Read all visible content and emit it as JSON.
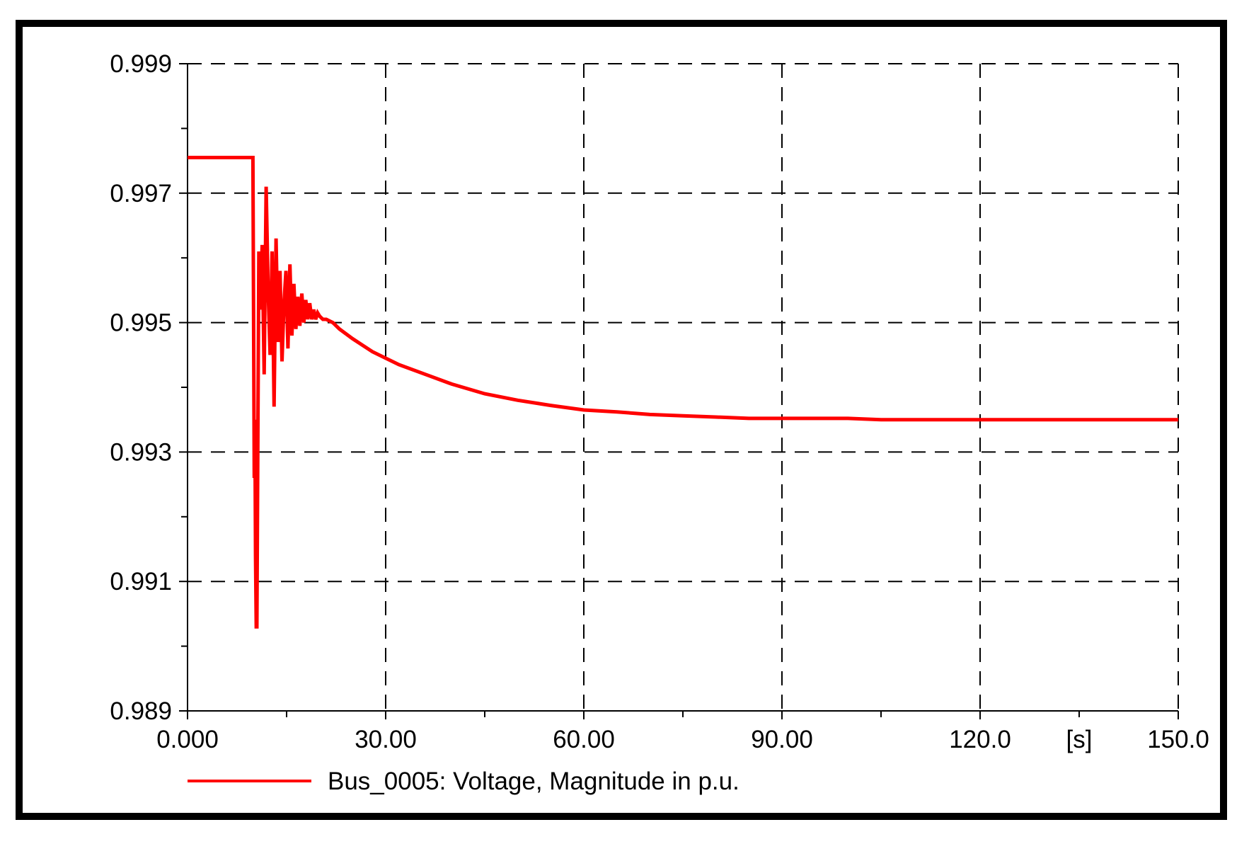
{
  "chart_data": {
    "type": "line",
    "xlabel": "",
    "ylabel": "",
    "x_unit_label": "[s]",
    "xlim": [
      0,
      150
    ],
    "ylim": [
      0.989,
      0.999
    ],
    "x_ticks": [
      {
        "value": 0,
        "label": "0.000"
      },
      {
        "value": 30,
        "label": "30.00"
      },
      {
        "value": 60,
        "label": "60.00"
      },
      {
        "value": 90,
        "label": "90.00"
      },
      {
        "value": 120,
        "label": "120.0"
      },
      {
        "value": 150,
        "label": "150.0"
      }
    ],
    "x_minor_ticks": [
      15,
      45,
      75,
      105,
      135
    ],
    "y_ticks": [
      {
        "value": 0.989,
        "label": "0.989"
      },
      {
        "value": 0.991,
        "label": "0.991"
      },
      {
        "value": 0.993,
        "label": "0.993"
      },
      {
        "value": 0.995,
        "label": "0.995"
      },
      {
        "value": 0.997,
        "label": "0.997"
      },
      {
        "value": 0.999,
        "label": "0.999"
      }
    ],
    "y_minor_ticks": [
      0.99,
      0.992,
      0.994,
      0.996,
      0.998
    ],
    "grid": true,
    "grid_style": "dashed",
    "legend_position": "bottom-left",
    "series": [
      {
        "name": "Bus_0005: Voltage, Magnitude in p.u.",
        "color": "#ff0000",
        "x": [
          0,
          9.9,
          10.0,
          10.1,
          10.2,
          10.3,
          10.4,
          10.5,
          10.6,
          10.8,
          11.0,
          11.3,
          11.6,
          11.9,
          12.2,
          12.5,
          12.8,
          13.1,
          13.4,
          13.7,
          14.0,
          14.3,
          14.6,
          14.9,
          15.2,
          15.5,
          15.8,
          16.1,
          16.4,
          16.7,
          17.0,
          17.3,
          17.6,
          17.9,
          18.2,
          18.5,
          18.8,
          19.1,
          19.4,
          19.7,
          20.0,
          20.5,
          21.0,
          22.0,
          23.0,
          25.0,
          28.0,
          32.0,
          36.0,
          40.0,
          45.0,
          50.0,
          55.0,
          60.0,
          65.0,
          70.0,
          75.0,
          80.0,
          85.0,
          90.0,
          95.0,
          100.0,
          105.0,
          110.0,
          120.0,
          130.0,
          140.0,
          150.0
        ],
        "y": [
          0.99755,
          0.99755,
          0.9952,
          0.9926,
          0.9935,
          0.9914,
          0.9903,
          0.9903,
          0.9922,
          0.9961,
          0.9952,
          0.9962,
          0.9942,
          0.9971,
          0.9955,
          0.9945,
          0.9961,
          0.9937,
          0.9963,
          0.9947,
          0.9958,
          0.9944,
          0.9953,
          0.9958,
          0.9946,
          0.9959,
          0.9948,
          0.9956,
          0.9949,
          0.9954,
          0.99495,
          0.99545,
          0.995,
          0.99535,
          0.99505,
          0.9953,
          0.99505,
          0.9952,
          0.99505,
          0.99515,
          0.9951,
          0.99505,
          0.99505,
          0.995,
          0.9949,
          0.99475,
          0.99455,
          0.99435,
          0.9942,
          0.99405,
          0.9939,
          0.9938,
          0.99372,
          0.99365,
          0.99362,
          0.99358,
          0.99356,
          0.99354,
          0.99352,
          0.99352,
          0.99352,
          0.99352,
          0.9935,
          0.9935,
          0.9935,
          0.9935,
          0.9935,
          0.9935
        ]
      }
    ]
  }
}
